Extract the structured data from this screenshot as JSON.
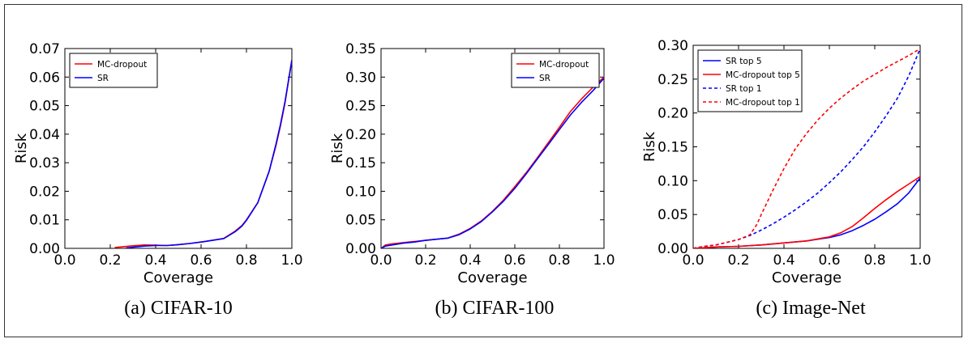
{
  "chart_data": [
    {
      "type": "line",
      "caption": "(a) CIFAR-10",
      "xlabel": "Coverage",
      "ylabel": "Risk",
      "xlim": [
        0.0,
        1.0
      ],
      "ylim": [
        0.0,
        0.07
      ],
      "xticks": [
        "0.0",
        "0.2",
        "0.4",
        "0.6",
        "0.8",
        "1.0"
      ],
      "yticks": [
        "0.00",
        "0.01",
        "0.02",
        "0.03",
        "0.04",
        "0.05",
        "0.06",
        "0.07"
      ],
      "legend_position": "top-left",
      "series": [
        {
          "name": "MC-dropout",
          "color": "#ff0000",
          "dash": "solid",
          "x": [
            0.22,
            0.25,
            0.3,
            0.35,
            0.4,
            0.45,
            0.5,
            0.55,
            0.6,
            0.65,
            0.7,
            0.75,
            0.78,
            0.8,
            0.85,
            0.9,
            0.93,
            0.95,
            0.97,
            1.0
          ],
          "y": [
            0.0003,
            0.0005,
            0.0009,
            0.0012,
            0.0011,
            0.001,
            0.0013,
            0.0017,
            0.0022,
            0.0028,
            0.0035,
            0.006,
            0.008,
            0.01,
            0.016,
            0.027,
            0.036,
            0.043,
            0.051,
            0.066
          ]
        },
        {
          "name": "SR",
          "color": "#0000ff",
          "dash": "solid",
          "x": [
            0.27,
            0.3,
            0.35,
            0.4,
            0.45,
            0.5,
            0.55,
            0.6,
            0.65,
            0.7,
            0.75,
            0.78,
            0.8,
            0.85,
            0.9,
            0.93,
            0.95,
            0.97,
            1.0
          ],
          "y": [
            0.0001,
            0.0004,
            0.0008,
            0.001,
            0.001,
            0.0013,
            0.0017,
            0.0022,
            0.0028,
            0.0034,
            0.0058,
            0.0078,
            0.0098,
            0.016,
            0.027,
            0.0365,
            0.0435,
            0.0515,
            0.066
          ]
        }
      ]
    },
    {
      "type": "line",
      "caption": "(b) CIFAR-100",
      "xlabel": "Coverage",
      "ylabel": "Risk",
      "xlim": [
        0.0,
        1.0
      ],
      "ylim": [
        0.0,
        0.35
      ],
      "xticks": [
        "0.0",
        "0.2",
        "0.4",
        "0.6",
        "0.8",
        "1.0"
      ],
      "yticks": [
        "0.00",
        "0.05",
        "0.10",
        "0.15",
        "0.20",
        "0.25",
        "0.30",
        "0.35"
      ],
      "legend_position": "top-right",
      "series": [
        {
          "name": "MC-dropout",
          "color": "#ff0000",
          "dash": "solid",
          "x": [
            0.0,
            0.02,
            0.05,
            0.1,
            0.15,
            0.2,
            0.25,
            0.3,
            0.35,
            0.4,
            0.45,
            0.5,
            0.55,
            0.6,
            0.65,
            0.7,
            0.75,
            0.8,
            0.85,
            0.9,
            0.95,
            1.0
          ],
          "y": [
            0.0,
            0.006,
            0.008,
            0.01,
            0.012,
            0.014,
            0.016,
            0.018,
            0.025,
            0.035,
            0.048,
            0.065,
            0.085,
            0.108,
            0.132,
            0.158,
            0.185,
            0.212,
            0.24,
            0.262,
            0.282,
            0.3
          ]
        },
        {
          "name": "SR",
          "color": "#0000ff",
          "dash": "solid",
          "x": [
            0.0,
            0.02,
            0.05,
            0.1,
            0.15,
            0.2,
            0.25,
            0.3,
            0.35,
            0.4,
            0.45,
            0.5,
            0.55,
            0.6,
            0.65,
            0.7,
            0.75,
            0.8,
            0.85,
            0.9,
            0.95,
            1.0
          ],
          "y": [
            0.0,
            0.004,
            0.006,
            0.009,
            0.011,
            0.014,
            0.016,
            0.018,
            0.024,
            0.034,
            0.047,
            0.064,
            0.083,
            0.105,
            0.13,
            0.156,
            0.182,
            0.208,
            0.234,
            0.256,
            0.276,
            0.298
          ]
        }
      ]
    },
    {
      "type": "line",
      "caption": "(c) Image-Net",
      "xlabel": "Coverage",
      "ylabel": "Risk",
      "xlim": [
        0.0,
        1.0
      ],
      "ylim": [
        0.0,
        0.3
      ],
      "xticks": [
        "0.0",
        "0.2",
        "0.4",
        "0.6",
        "0.8",
        "1.0"
      ],
      "yticks": [
        "0.00",
        "0.05",
        "0.10",
        "0.15",
        "0.20",
        "0.25",
        "0.30"
      ],
      "legend_position": "top-left",
      "series": [
        {
          "name": "SR top 5",
          "color": "#0000ff",
          "dash": "solid",
          "x": [
            0.0,
            0.05,
            0.1,
            0.2,
            0.3,
            0.4,
            0.5,
            0.6,
            0.65,
            0.7,
            0.75,
            0.8,
            0.85,
            0.9,
            0.95,
            1.0
          ],
          "y": [
            0.0,
            0.001,
            0.002,
            0.003,
            0.005,
            0.008,
            0.011,
            0.016,
            0.02,
            0.026,
            0.034,
            0.043,
            0.054,
            0.066,
            0.082,
            0.104
          ]
        },
        {
          "name": "MC-dropout top 5",
          "color": "#ff0000",
          "dash": "solid",
          "x": [
            0.0,
            0.05,
            0.1,
            0.2,
            0.3,
            0.4,
            0.5,
            0.6,
            0.65,
            0.7,
            0.75,
            0.8,
            0.85,
            0.9,
            0.95,
            1.0
          ],
          "y": [
            0.0,
            0.001,
            0.002,
            0.003,
            0.005,
            0.008,
            0.011,
            0.017,
            0.023,
            0.032,
            0.045,
            0.059,
            0.072,
            0.084,
            0.095,
            0.106
          ]
        },
        {
          "name": "SR top 1",
          "color": "#0000ff",
          "dash": "dashed",
          "x": [
            0.0,
            0.05,
            0.1,
            0.15,
            0.2,
            0.25,
            0.3,
            0.35,
            0.4,
            0.45,
            0.5,
            0.55,
            0.6,
            0.65,
            0.7,
            0.75,
            0.8,
            0.85,
            0.9,
            0.95,
            1.0
          ],
          "y": [
            0.0,
            0.003,
            0.005,
            0.009,
            0.013,
            0.019,
            0.027,
            0.036,
            0.046,
            0.057,
            0.069,
            0.082,
            0.097,
            0.113,
            0.131,
            0.15,
            0.172,
            0.196,
            0.222,
            0.255,
            0.295
          ]
        },
        {
          "name": "MC-dropout top 1",
          "color": "#ff0000",
          "dash": "dashed",
          "x": [
            0.0,
            0.05,
            0.1,
            0.15,
            0.2,
            0.25,
            0.28,
            0.3,
            0.35,
            0.4,
            0.45,
            0.5,
            0.55,
            0.6,
            0.65,
            0.7,
            0.75,
            0.8,
            0.85,
            0.9,
            0.95,
            1.0
          ],
          "y": [
            0.0,
            0.003,
            0.005,
            0.009,
            0.013,
            0.02,
            0.035,
            0.05,
            0.085,
            0.118,
            0.147,
            0.17,
            0.19,
            0.207,
            0.222,
            0.235,
            0.247,
            0.257,
            0.267,
            0.276,
            0.285,
            0.295
          ]
        }
      ]
    }
  ]
}
